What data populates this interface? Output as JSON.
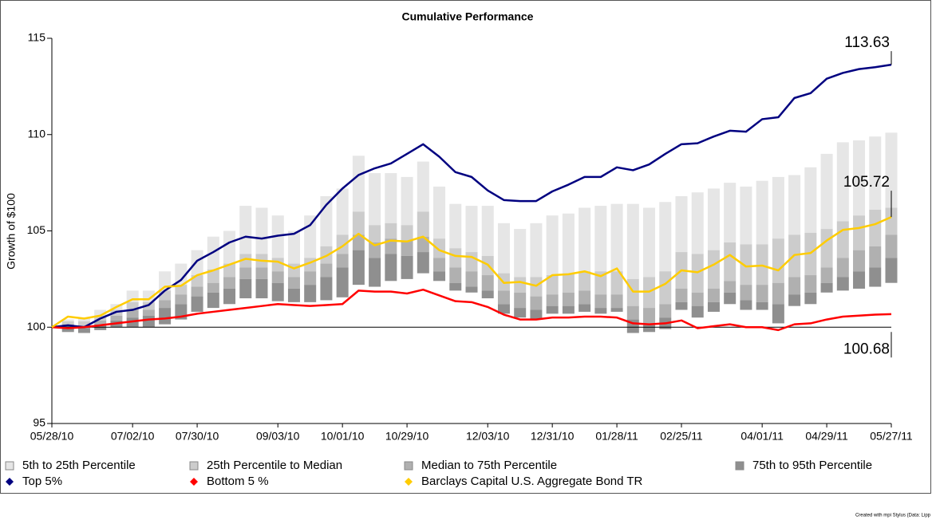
{
  "chart_data": {
    "type": "percentile_band",
    "title": "Cumulative Performance",
    "y_label": "Growth of $100",
    "categories": [
      "05/28/10",
      null,
      null,
      null,
      null,
      "07/02/10",
      null,
      null,
      null,
      "07/30/10",
      null,
      null,
      null,
      null,
      "09/03/10",
      null,
      null,
      null,
      "10/01/10",
      null,
      null,
      null,
      "10/29/10",
      null,
      null,
      null,
      null,
      "12/03/10",
      null,
      null,
      null,
      "12/31/10",
      null,
      null,
      null,
      "01/28/11",
      null,
      null,
      null,
      "02/25/11",
      null,
      null,
      null,
      null,
      "04/01/11",
      null,
      null,
      null,
      "04/29/11",
      null,
      null,
      null,
      "05/27/11"
    ],
    "ylim": [
      95,
      115
    ],
    "yticks": [
      95,
      100,
      105,
      110,
      115
    ],
    "reference_line": 100,
    "bands": [
      {
        "name": "5th to 25th Percentile",
        "color": "#e6e6e6",
        "high": [
          100,
          100.4,
          100.5,
          100.9,
          101.2,
          101.9,
          101.9,
          102.9,
          103.3,
          104.0,
          104.7,
          105.0,
          106.3,
          106.2,
          105.8,
          105.0,
          105.8,
          106.8,
          107.2,
          108.9,
          108.0,
          108.0,
          107.8,
          108.6,
          107.3,
          106.4,
          106.3,
          106.3,
          105.4,
          105.1,
          105.4,
          105.8,
          105.9,
          106.2,
          106.3,
          106.4,
          106.4,
          106.2,
          106.5,
          106.8,
          107.0,
          107.2,
          107.5,
          107.3,
          107.6,
          107.8,
          107.9,
          108.3,
          109.0,
          109.6,
          109.7,
          109.9,
          110.1
        ]
      },
      {
        "name": "25th Percentile to Median",
        "color": "#cccccc",
        "high": [
          100,
          100.3,
          100.3,
          100.6,
          100.9,
          101.3,
          101.3,
          101.9,
          102.2,
          102.7,
          103.0,
          103.3,
          103.8,
          103.8,
          103.6,
          103.3,
          103.6,
          104.2,
          104.8,
          106.0,
          105.3,
          105.4,
          105.3,
          106.0,
          104.6,
          104.1,
          103.9,
          103.7,
          102.8,
          102.6,
          102.6,
          102.7,
          102.8,
          102.9,
          102.9,
          102.9,
          102.5,
          102.6,
          102.9,
          103.9,
          103.8,
          104.0,
          104.4,
          104.3,
          104.3,
          104.6,
          104.8,
          104.9,
          105.1,
          105.5,
          105.8,
          106.1,
          106.2
        ]
      },
      {
        "name": "Median to 75th Percentile",
        "color": "#b0b0b0",
        "high": [
          100,
          100.15,
          100.1,
          100.35,
          100.6,
          100.9,
          100.9,
          101.4,
          101.7,
          102.1,
          102.3,
          102.6,
          103.1,
          103.1,
          102.9,
          102.6,
          102.9,
          103.3,
          103.8,
          104.8,
          104.4,
          104.6,
          104.5,
          104.7,
          103.6,
          103.1,
          102.9,
          102.7,
          101.9,
          101.8,
          101.6,
          101.7,
          101.8,
          101.9,
          101.7,
          101.7,
          101.1,
          101.0,
          101.2,
          102.0,
          101.8,
          102.0,
          102.4,
          102.2,
          102.2,
          102.3,
          102.6,
          102.7,
          103.1,
          103.6,
          104.0,
          104.2,
          104.8
        ]
      },
      {
        "name": "75th to 95th Percentile",
        "color": "#8f8f8f",
        "high": [
          100,
          100.05,
          99.95,
          100.15,
          100.35,
          100.5,
          100.6,
          101.0,
          101.2,
          101.6,
          101.8,
          102.0,
          102.5,
          102.5,
          102.3,
          102.0,
          102.2,
          102.6,
          103.1,
          104.0,
          103.6,
          103.8,
          103.7,
          103.9,
          102.9,
          102.3,
          102.1,
          101.9,
          101.2,
          101.0,
          100.9,
          101.1,
          101.1,
          101.2,
          101.0,
          101.0,
          100.4,
          100.2,
          100.5,
          101.3,
          101.1,
          101.3,
          101.8,
          101.4,
          101.3,
          101.2,
          101.7,
          101.8,
          102.3,
          102.6,
          102.9,
          103.1,
          103.6
        ],
        "low": [
          100,
          99.75,
          99.7,
          99.85,
          100.0,
          100.0,
          100.0,
          100.15,
          100.4,
          100.8,
          101.0,
          101.2,
          101.5,
          101.5,
          101.35,
          101.3,
          101.3,
          101.4,
          101.55,
          102.2,
          102.1,
          102.4,
          102.5,
          102.8,
          102.4,
          101.9,
          101.8,
          101.5,
          100.7,
          100.5,
          100.4,
          100.7,
          100.7,
          100.8,
          100.7,
          100.8,
          99.7,
          99.75,
          99.9,
          100.9,
          100.5,
          100.8,
          101.2,
          100.9,
          100.9,
          100.2,
          101.1,
          101.2,
          101.8,
          101.9,
          102.0,
          102.1,
          102.3
        ]
      }
    ],
    "series": [
      {
        "name": "Top 5%",
        "color": "#000080",
        "values": [
          100,
          100.1,
          100.0,
          100.45,
          100.8,
          100.9,
          101.15,
          101.9,
          102.45,
          103.45,
          103.9,
          104.4,
          104.7,
          104.6,
          104.75,
          104.85,
          105.3,
          106.35,
          107.2,
          107.9,
          108.25,
          108.5,
          109.0,
          109.5,
          108.85,
          108.05,
          107.8,
          107.1,
          106.6,
          106.55,
          106.55,
          107.05,
          107.4,
          107.8,
          107.8,
          108.3,
          108.15,
          108.45,
          109.0,
          109.5,
          109.55,
          109.9,
          110.2,
          110.15,
          110.8,
          110.9,
          111.9,
          112.15,
          112.9,
          113.2,
          113.4,
          113.5,
          113.63
        ]
      },
      {
        "name": "Bottom 5 %",
        "color": "#ff0000",
        "values": [
          100,
          99.95,
          100.0,
          100.1,
          100.2,
          100.3,
          100.4,
          100.45,
          100.55,
          100.7,
          100.8,
          100.9,
          101.0,
          101.1,
          101.2,
          101.15,
          101.1,
          101.15,
          101.2,
          101.9,
          101.85,
          101.85,
          101.75,
          101.95,
          101.65,
          101.35,
          101.3,
          101.05,
          100.65,
          100.4,
          100.4,
          100.5,
          100.5,
          100.55,
          100.55,
          100.5,
          100.2,
          100.15,
          100.2,
          100.35,
          99.95,
          100.05,
          100.15,
          100.0,
          100.0,
          99.85,
          100.15,
          100.2,
          100.4,
          100.55,
          100.6,
          100.65,
          100.68
        ]
      },
      {
        "name": "Barclays Capital U.S. Aggregate Bond TR",
        "color": "#ffcc00",
        "values": [
          100,
          100.55,
          100.45,
          100.6,
          101.05,
          101.45,
          101.45,
          102.1,
          102.15,
          102.7,
          102.95,
          103.25,
          103.55,
          103.45,
          103.4,
          103.05,
          103.35,
          103.7,
          104.2,
          104.85,
          104.25,
          104.5,
          104.45,
          104.7,
          104.0,
          103.7,
          103.65,
          103.25,
          102.3,
          102.35,
          102.15,
          102.7,
          102.75,
          102.9,
          102.65,
          103.05,
          101.85,
          101.85,
          102.25,
          102.95,
          102.85,
          103.25,
          103.75,
          103.15,
          103.2,
          102.95,
          103.75,
          103.85,
          104.5,
          105.05,
          105.15,
          105.35,
          105.72
        ]
      }
    ],
    "footer": "Created with mpi Stylus (Data: Lipp"
  }
}
